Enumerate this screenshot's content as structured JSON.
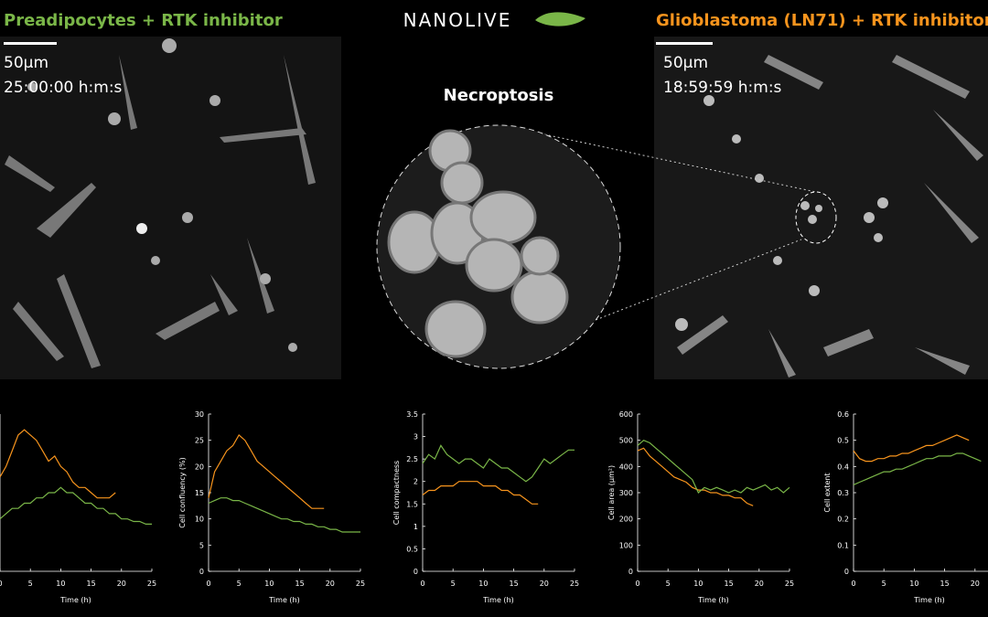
{
  "header": {
    "left_title": "Preadipocytes + RTK inhibitor",
    "logo": "NANOLIVE",
    "right_title": "Glioblastoma (LN71) + RTK inhibitor",
    "center_label": "Necroptosis"
  },
  "left_image": {
    "scale": "50µm",
    "time": "25:00:00  h:m:s"
  },
  "right_image": {
    "scale": "50µm",
    "time": "18:59:59  h:m:s"
  },
  "chart_data": [
    {
      "type": "line",
      "x_label": "Time (h)",
      "x": [
        0,
        1,
        2,
        3,
        4,
        5,
        6,
        7,
        8,
        9,
        10,
        11,
        12,
        13,
        14,
        15,
        16,
        17,
        18,
        19,
        20,
        21,
        22,
        23,
        24,
        25
      ],
      "xlim": [
        0,
        25
      ],
      "xticks": [
        0,
        5,
        10,
        15,
        20,
        25
      ],
      "ylim": [
        0,
        30
      ],
      "series": [
        {
          "color": "#f7941d",
          "values": [
            18,
            20,
            23,
            26,
            27,
            26,
            25,
            23,
            21,
            22,
            20,
            19,
            17,
            16,
            16,
            15,
            14,
            14,
            14,
            15,
            null,
            null,
            null,
            null,
            null,
            null
          ]
        },
        {
          "color": "#7ab648",
          "values": [
            10,
            11,
            12,
            12,
            13,
            13,
            14,
            14,
            15,
            15,
            16,
            15,
            15,
            14,
            13,
            13,
            12,
            12,
            11,
            11,
            10,
            10,
            9.5,
            9.5,
            9,
            9
          ]
        }
      ]
    },
    {
      "type": "line",
      "y_label": "Cell confluency (%)",
      "x_label": "Time (h)",
      "x": [
        0,
        1,
        2,
        3,
        4,
        5,
        6,
        7,
        8,
        9,
        10,
        11,
        12,
        13,
        14,
        15,
        16,
        17,
        18,
        19,
        20,
        21,
        22,
        23,
        24,
        25
      ],
      "xlim": [
        0,
        25
      ],
      "xticks": [
        0,
        5,
        10,
        15,
        20,
        25
      ],
      "ylim": [
        0,
        30
      ],
      "yticks": [
        0,
        5,
        10,
        15,
        20,
        25,
        30
      ],
      "series": [
        {
          "color": "#f7941d",
          "values": [
            14,
            19,
            21,
            23,
            24,
            26,
            25,
            23,
            21,
            20,
            19,
            18,
            17,
            16,
            15,
            14,
            13,
            12,
            12,
            12,
            null,
            null,
            null,
            null,
            null,
            null
          ]
        },
        {
          "color": "#7ab648",
          "values": [
            13,
            13.5,
            14,
            14,
            13.5,
            13.5,
            13,
            12.5,
            12,
            11.5,
            11,
            10.5,
            10,
            10,
            9.5,
            9.5,
            9,
            9,
            8.5,
            8.5,
            8,
            8,
            7.5,
            7.5,
            7.5,
            7.5
          ]
        }
      ]
    },
    {
      "type": "line",
      "y_label": "Cell compactness",
      "x_label": "Time (h)",
      "x": [
        0,
        1,
        2,
        3,
        4,
        5,
        6,
        7,
        8,
        9,
        10,
        11,
        12,
        13,
        14,
        15,
        16,
        17,
        18,
        19,
        20,
        21,
        22,
        23,
        24,
        25
      ],
      "xlim": [
        0,
        25
      ],
      "xticks": [
        0,
        5,
        10,
        15,
        20,
        25
      ],
      "ylim": [
        0,
        3.5
      ],
      "yticks": [
        0,
        0.5,
        1,
        1.5,
        2,
        2.5,
        3,
        3.5
      ],
      "series": [
        {
          "color": "#f7941d",
          "values": [
            1.7,
            1.8,
            1.8,
            1.9,
            1.9,
            1.9,
            2.0,
            2.0,
            2.0,
            2.0,
            1.9,
            1.9,
            1.9,
            1.8,
            1.8,
            1.7,
            1.7,
            1.6,
            1.5,
            1.5,
            null,
            null,
            null,
            null,
            null,
            null
          ]
        },
        {
          "color": "#7ab648",
          "values": [
            2.4,
            2.6,
            2.5,
            2.8,
            2.6,
            2.5,
            2.4,
            2.5,
            2.5,
            2.4,
            2.3,
            2.5,
            2.4,
            2.3,
            2.3,
            2.2,
            2.1,
            2.0,
            2.1,
            2.3,
            2.5,
            2.4,
            2.5,
            2.6,
            2.7,
            2.7
          ]
        }
      ]
    },
    {
      "type": "line",
      "y_label": "Cell area (µm²)",
      "x_label": "Time (h)",
      "x": [
        0,
        1,
        2,
        3,
        4,
        5,
        6,
        7,
        8,
        9,
        10,
        11,
        12,
        13,
        14,
        15,
        16,
        17,
        18,
        19,
        20,
        21,
        22,
        23,
        24,
        25
      ],
      "xlim": [
        0,
        25
      ],
      "xticks": [
        0,
        5,
        10,
        15,
        20,
        25
      ],
      "ylim": [
        0,
        600
      ],
      "yticks": [
        0,
        100,
        200,
        300,
        400,
        500,
        600
      ],
      "series": [
        {
          "color": "#f7941d",
          "values": [
            460,
            470,
            440,
            420,
            400,
            380,
            360,
            350,
            340,
            320,
            310,
            310,
            300,
            300,
            290,
            290,
            280,
            280,
            260,
            250,
            null,
            null,
            null,
            null,
            null,
            null
          ]
        },
        {
          "color": "#7ab648",
          "values": [
            480,
            500,
            490,
            470,
            450,
            430,
            410,
            390,
            370,
            350,
            300,
            320,
            310,
            320,
            310,
            300,
            310,
            300,
            320,
            310,
            320,
            330,
            310,
            320,
            300,
            320
          ]
        }
      ]
    },
    {
      "type": "line",
      "y_label": "Cell extent",
      "x_label": "Time (h)",
      "x": [
        0,
        1,
        2,
        3,
        4,
        5,
        6,
        7,
        8,
        9,
        10,
        11,
        12,
        13,
        14,
        15,
        16,
        17,
        18,
        19,
        20,
        21
      ],
      "xlim": [
        0,
        25
      ],
      "xticks": [
        0,
        5,
        10,
        15,
        20
      ],
      "ylim": [
        0,
        0.6
      ],
      "yticks": [
        0,
        0.1,
        0.2,
        0.3,
        0.4,
        0.5,
        0.6
      ],
      "series": [
        {
          "color": "#f7941d",
          "values": [
            0.46,
            0.43,
            0.42,
            0.42,
            0.43,
            0.43,
            0.44,
            0.44,
            0.45,
            0.45,
            0.46,
            0.47,
            0.48,
            0.48,
            0.49,
            0.5,
            0.51,
            0.52,
            0.51,
            0.5,
            null,
            null
          ]
        },
        {
          "color": "#7ab648",
          "values": [
            0.33,
            0.34,
            0.35,
            0.36,
            0.37,
            0.38,
            0.38,
            0.39,
            0.39,
            0.4,
            0.41,
            0.42,
            0.43,
            0.43,
            0.44,
            0.44,
            0.44,
            0.45,
            0.45,
            0.44,
            0.43,
            0.42
          ]
        }
      ]
    }
  ]
}
